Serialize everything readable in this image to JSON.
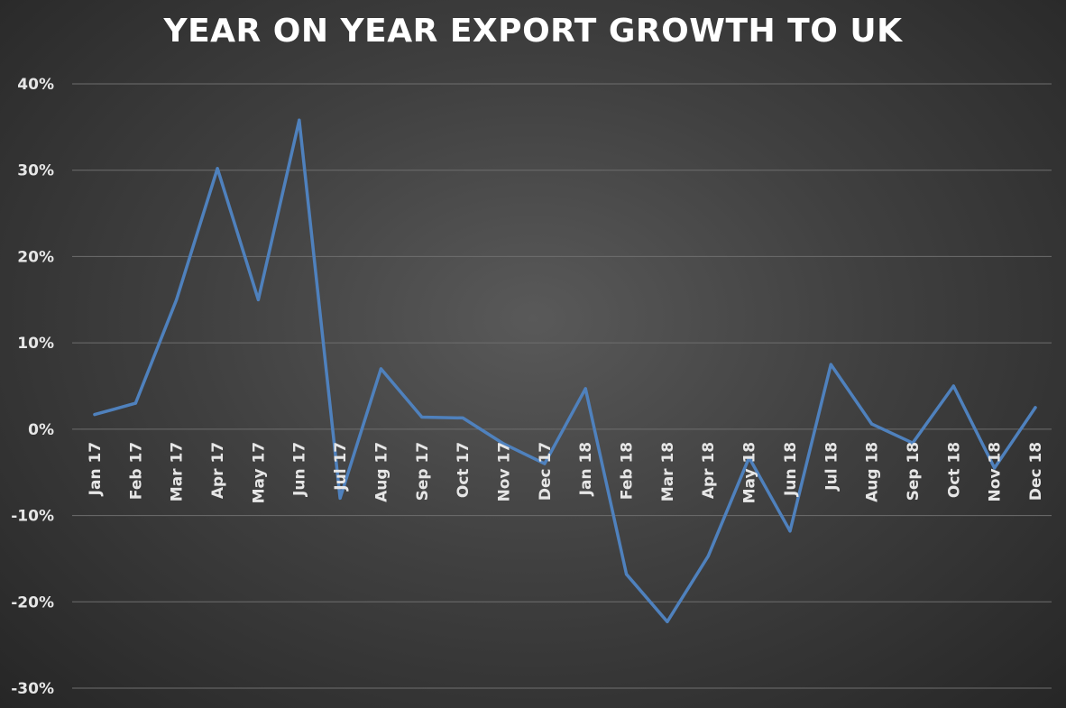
{
  "chart_data": {
    "type": "line",
    "title": "YEAR ON YEAR EXPORT GROWTH TO UK",
    "xlabel": "",
    "ylabel": "",
    "ylim": [
      -0.3,
      0.4
    ],
    "y_ticks": [
      0.4,
      0.3,
      0.2,
      0.1,
      0.0,
      -0.1,
      -0.2,
      -0.3
    ],
    "y_tick_labels": [
      "40%",
      "30%",
      "20%",
      "10%",
      "0%",
      "-10%",
      "-20%",
      "-30%"
    ],
    "grid": true,
    "legend": "none",
    "line_color": "#4f81bd",
    "categories": [
      "Jan 17",
      "Feb 17",
      "Mar 17",
      "Apr 17",
      "May 17",
      "Jun 17",
      "Jul 17",
      "Aug 17",
      "Sep 17",
      "Oct 17",
      "Nov 17",
      "Dec 17",
      "Jan 18",
      "Feb 18",
      "Mar 18",
      "Apr 18",
      "May 18",
      "Jun 18",
      "Jul 18",
      "Aug 18",
      "Sep 18",
      "Oct 18",
      "Nov 18",
      "Dec 18"
    ],
    "series": [
      {
        "values": [
          0.017,
          0.03,
          0.15,
          0.302,
          0.15,
          0.358,
          -0.08,
          0.07,
          0.014,
          0.013,
          -0.017,
          -0.04,
          0.047,
          -0.168,
          -0.223,
          -0.147,
          -0.033,
          -0.118,
          0.075,
          0.006,
          -0.016,
          0.05,
          -0.045,
          0.025
        ]
      }
    ]
  }
}
